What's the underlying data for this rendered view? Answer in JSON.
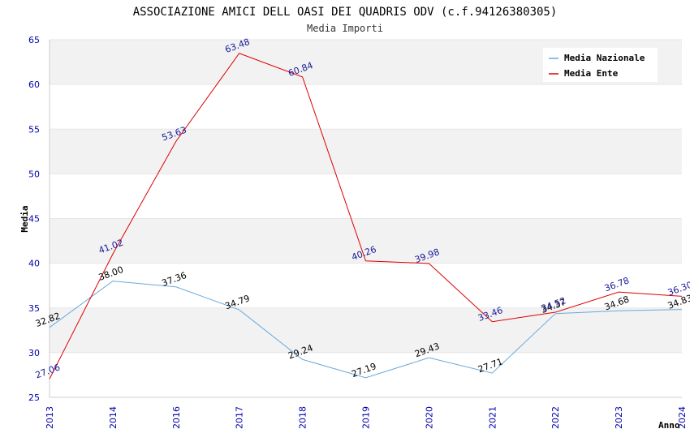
{
  "chart_data": {
    "type": "line",
    "title": "ASSOCIAZIONE AMICI DELL OASI DEI QUADRIS ODV (c.f.94126380305)",
    "subtitle": "Media Importi",
    "xlabel": "Anno",
    "ylabel": "Media",
    "ylim": [
      25,
      65
    ],
    "yticks": [
      "25",
      "30",
      "35",
      "40",
      "45",
      "50",
      "55",
      "60",
      "65"
    ],
    "grid": true,
    "legend_position": "top-right",
    "categories": [
      "2013",
      "2014",
      "2016",
      "2017",
      "2018",
      "2019",
      "2020",
      "2021",
      "2022",
      "2023",
      "2024"
    ],
    "series": [
      {
        "name": "Media Nazionale",
        "color": "#66aadd",
        "values": [
          32.82,
          38.0,
          37.36,
          34.79,
          29.24,
          27.19,
          29.43,
          27.71,
          34.37,
          34.68,
          34.83
        ],
        "labels": [
          "32.82",
          "38.00",
          "37.36",
          "34.79",
          "29.24",
          "27.19",
          "29.43",
          "27.71",
          "34.37",
          "34.68",
          "34.83"
        ]
      },
      {
        "name": "Media Ente",
        "color": "#dd0000",
        "values": [
          27.06,
          41.02,
          53.63,
          63.48,
          60.84,
          40.26,
          39.98,
          33.46,
          34.52,
          36.78,
          36.3
        ],
        "labels": [
          "27.06",
          "41.02",
          "53.63",
          "63.48",
          "60.84",
          "40.26",
          "39.98",
          "33.46",
          "34.52",
          "36.78",
          "36.30"
        ]
      }
    ]
  }
}
